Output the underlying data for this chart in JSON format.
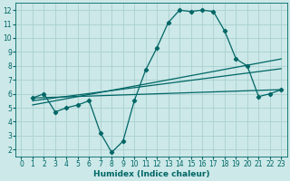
{
  "background_color": "#cce8e8",
  "grid_color": "#aad0d0",
  "line_color": "#006666",
  "xlabel": "Humidex (Indice chaleur)",
  "xlim": [
    -0.5,
    23.5
  ],
  "ylim": [
    1.5,
    12.5
  ],
  "xticks": [
    0,
    1,
    2,
    3,
    4,
    5,
    6,
    7,
    8,
    9,
    10,
    11,
    12,
    13,
    14,
    15,
    16,
    17,
    18,
    19,
    20,
    21,
    22,
    23
  ],
  "yticks": [
    2,
    3,
    4,
    5,
    6,
    7,
    8,
    9,
    10,
    11,
    12
  ],
  "line1_x": [
    1,
    2,
    3,
    4,
    5,
    6,
    7,
    8,
    9,
    10,
    11,
    12,
    13,
    14,
    15,
    16,
    17,
    18,
    19,
    20,
    21,
    22,
    23
  ],
  "line1_y": [
    5.7,
    6.0,
    4.7,
    5.0,
    5.2,
    5.5,
    3.2,
    1.8,
    2.6,
    5.5,
    7.7,
    9.3,
    11.1,
    12.0,
    11.9,
    12.0,
    11.9,
    10.5,
    8.5,
    8.0,
    5.8,
    6.0,
    6.3
  ],
  "line2_x": [
    1,
    23
  ],
  "line2_y": [
    5.7,
    6.3
  ],
  "line3_x": [
    1,
    23
  ],
  "line3_y": [
    5.5,
    7.8
  ],
  "line4_x": [
    1,
    23
  ],
  "line4_y": [
    5.2,
    8.5
  ],
  "marker": "D",
  "markersize": 2.2,
  "linewidth": 0.9,
  "tick_fontsize": 5.5,
  "xlabel_fontsize": 6.5
}
